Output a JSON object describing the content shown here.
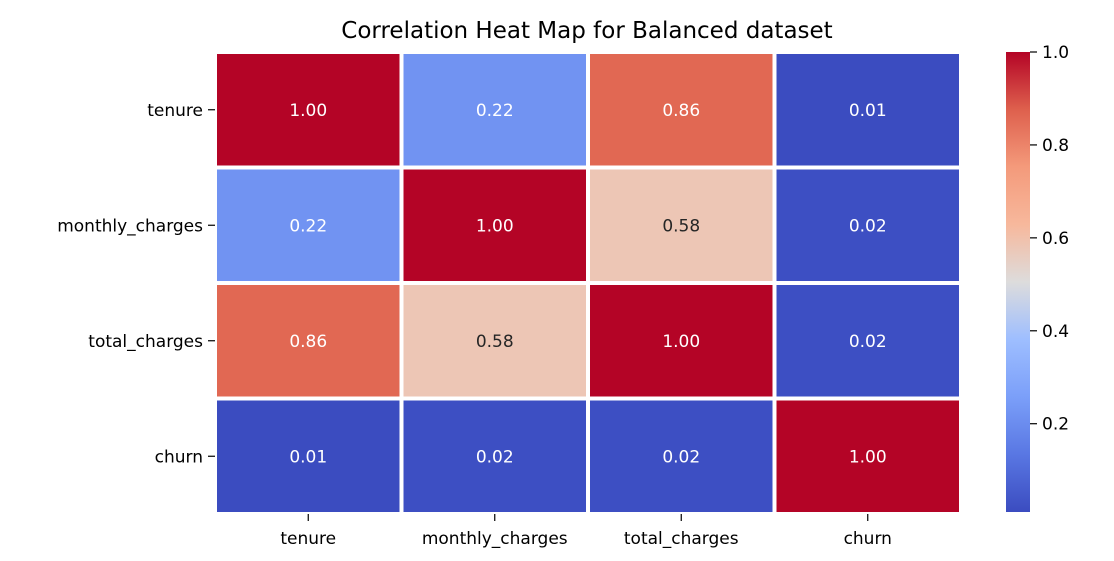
{
  "chart_data": {
    "type": "heatmap",
    "title": "Correlation Heat Map for Balanced dataset",
    "x_labels": [
      "tenure",
      "monthly_charges",
      "total_charges",
      "churn"
    ],
    "y_labels": [
      "tenure",
      "monthly_charges",
      "total_charges",
      "churn"
    ],
    "values": [
      [
        1.0,
        0.22,
        0.86,
        0.01
      ],
      [
        0.22,
        1.0,
        0.58,
        0.02
      ],
      [
        0.86,
        0.58,
        1.0,
        0.02
      ],
      [
        0.01,
        0.02,
        0.02,
        1.0
      ]
    ],
    "cell_labels": [
      [
        "1.00",
        "0.22",
        "0.86",
        "0.01"
      ],
      [
        "0.22",
        "1.00",
        "0.58",
        "0.02"
      ],
      [
        "0.86",
        "0.58",
        "1.00",
        "0.02"
      ],
      [
        "0.01",
        "0.02",
        "0.02",
        "1.00"
      ]
    ],
    "colormap": "coolwarm",
    "vmin": 0.01,
    "vmax": 1.0,
    "colorbar": {
      "ticks": [
        0.2,
        0.4,
        0.6,
        0.8,
        1.0
      ],
      "tick_labels": [
        "0.2",
        "0.4",
        "0.6",
        "0.8",
        "1.0"
      ],
      "placement": "right"
    },
    "cell_border_color": "#ffffff"
  }
}
